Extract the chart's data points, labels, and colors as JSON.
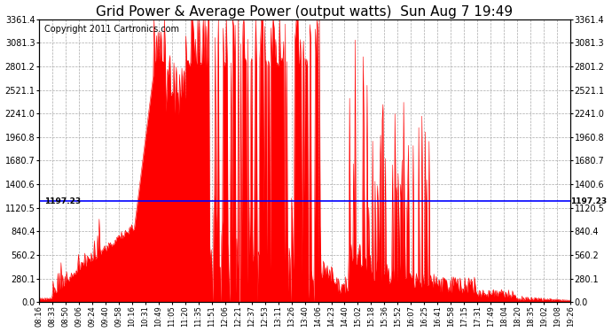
{
  "title": "Grid Power & Average Power (output watts)  Sun Aug 7 19:49",
  "copyright": "Copyright 2011 Cartronics.com",
  "avg_line_y": 1197.23,
  "avg_line_label": "1197.23",
  "ymin": 0.0,
  "ymax": 3361.4,
  "yticks": [
    0.0,
    280.1,
    560.2,
    840.4,
    1120.5,
    1400.6,
    1680.7,
    1960.8,
    2241.0,
    2521.1,
    2801.2,
    3081.3,
    3361.4
  ],
  "fill_color": "#FF0000",
  "line_color": "#0000FF",
  "bg_color": "#FFFFFF",
  "grid_color": "#AAAAAA",
  "xtick_labels": [
    "08:16",
    "08:33",
    "08:50",
    "09:06",
    "09:24",
    "09:40",
    "09:58",
    "10:16",
    "10:31",
    "10:49",
    "11:05",
    "11:20",
    "11:35",
    "11:51",
    "12:06",
    "12:21",
    "12:37",
    "12:53",
    "13:11",
    "13:26",
    "13:40",
    "14:06",
    "14:23",
    "14:40",
    "15:02",
    "15:18",
    "15:36",
    "15:52",
    "16:07",
    "16:25",
    "16:41",
    "16:58",
    "17:15",
    "17:31",
    "17:49",
    "18:04",
    "18:20",
    "18:35",
    "19:02",
    "19:08",
    "19:26"
  ],
  "title_fontsize": 11,
  "copyright_fontsize": 7
}
